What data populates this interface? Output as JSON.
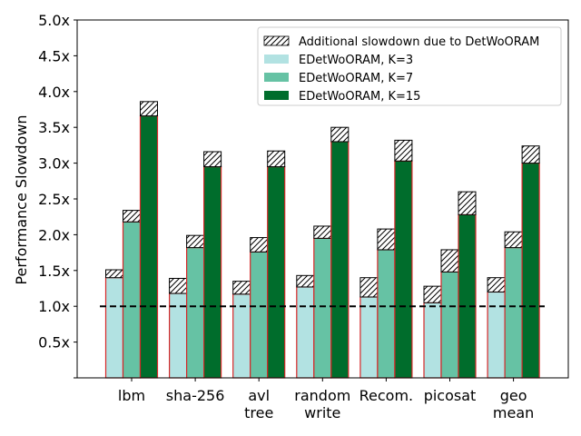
{
  "chart_data": {
    "type": "bar",
    "title": "",
    "xlabel": "",
    "ylabel": "Performance Slowdown",
    "ylim": [
      0,
      5.0
    ],
    "yticks": [
      "",
      "0.5x",
      "1.0x",
      "1.5x",
      "2.0x",
      "2.5x",
      "3.0x",
      "3.5x",
      "4.0x",
      "4.5x",
      "5.0x"
    ],
    "baseline": 1.0,
    "categories": [
      [
        "lbm"
      ],
      [
        "sha-256"
      ],
      [
        "avl",
        "tree"
      ],
      [
        "random",
        "write"
      ],
      [
        "Recom."
      ],
      [
        "picosat"
      ],
      [
        "geo",
        "mean"
      ]
    ],
    "series": [
      {
        "name": "EDetWoORAM, K=3",
        "color": "#b2e2e2",
        "values": [
          1.4,
          1.18,
          1.17,
          1.27,
          1.13,
          1.05,
          1.2
        ],
        "totals": [
          1.51,
          1.39,
          1.35,
          1.43,
          1.4,
          1.28,
          1.4
        ]
      },
      {
        "name": "EDetWoORAM, K=7",
        "color": "#66c2a4",
        "values": [
          2.18,
          1.82,
          1.76,
          1.95,
          1.79,
          1.48,
          1.82
        ],
        "totals": [
          2.34,
          1.99,
          1.96,
          2.12,
          2.08,
          1.79,
          2.04
        ]
      },
      {
        "name": "EDetWoORAM, K=15",
        "color": "#006d2c",
        "values": [
          3.66,
          2.95,
          2.95,
          3.3,
          3.03,
          2.28,
          3.0
        ],
        "totals": [
          3.86,
          3.16,
          3.17,
          3.5,
          3.32,
          2.6,
          3.24
        ]
      }
    ],
    "overlay": {
      "name": "Additional slowdown due to DetWoORAM",
      "pattern": "hatch"
    },
    "legend_position": "top-right"
  }
}
